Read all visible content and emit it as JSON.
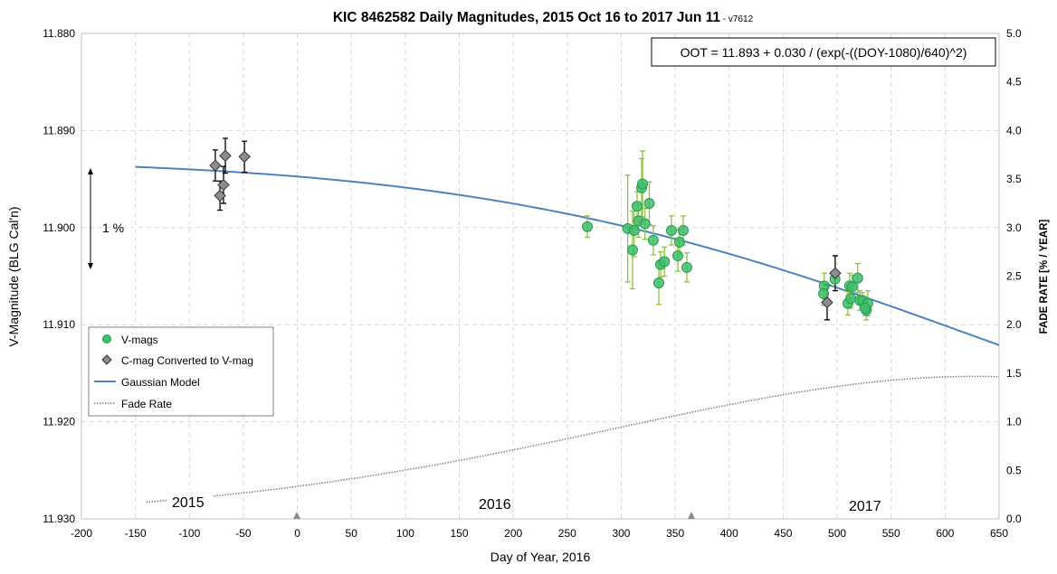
{
  "chart_data": {
    "type": "scatter",
    "title": "KIC 8462582 Daily Magnitudes, 2015 Oct 16 to 2017 Jun 11",
    "title_suffix": " - v7612",
    "xlabel": "Day of Year, 2016",
    "ylabel": "V-Magnitude (BLG Cal'n)",
    "y2label": "FADE RATE [% / YEAR]",
    "xlim": [
      -200,
      650
    ],
    "ylim": [
      11.88,
      11.93
    ],
    "y_inverted": true,
    "y2lim": [
      0,
      5.0
    ],
    "grid": true,
    "legend_position": "bottom-left",
    "x_ticks": [
      "-200",
      "-150",
      "-100",
      "-50",
      "0",
      "50",
      "100",
      "150",
      "200",
      "250",
      "300",
      "350",
      "400",
      "450",
      "500",
      "550",
      "600",
      "650"
    ],
    "y_ticks": [
      "11.880",
      "11.890",
      "11.900",
      "11.910",
      "11.920",
      "11.930"
    ],
    "y2_ticks": [
      "0.0",
      "0.5",
      "1.0",
      "1.5",
      "2.0",
      "2.5",
      "3.0",
      "3.5",
      "4.0",
      "4.5",
      "5.0"
    ],
    "equation": "OOT = 11.893 + 0.030 / (exp(-((DOY-1080)/640)^2)",
    "model": {
      "base": 11.893,
      "amplitude": 0.03,
      "center": 1080,
      "width": 640,
      "x_range": [
        -150,
        650
      ]
    },
    "fade_rate_range": [
      -140,
      650
    ],
    "annotations": {
      "scale": "1 %",
      "years": [
        "2015",
        "2016",
        "2017"
      ]
    },
    "series": [
      {
        "name": "V-mags",
        "marker": "circle",
        "color": "#3DBE6B",
        "errcolor": "#8CC43F",
        "points": [
          [
            268.6,
            11.8999,
            0.0011
          ],
          [
            306,
            11.9001,
            0.0055
          ],
          [
            310.5,
            11.9023,
            0.004
          ],
          [
            312,
            11.9003,
            0.0027
          ],
          [
            314.7,
            11.8978,
            0.0015
          ],
          [
            316,
            11.8993,
            0.0017
          ],
          [
            318.9,
            11.8959,
            0.003
          ],
          [
            319.7,
            11.8955,
            0.0034
          ],
          [
            322,
            11.8996,
            0.0016
          ],
          [
            326,
            11.8975,
            0.0022
          ],
          [
            329.7,
            11.9013,
            0.0015
          ],
          [
            334.8,
            11.9057,
            0.0022
          ],
          [
            336.5,
            11.9038,
            0.0013
          ],
          [
            340,
            11.9035,
            0.0015
          ],
          [
            346.5,
            11.9003,
            0.0015
          ],
          [
            352.4,
            11.9029,
            0.0016
          ],
          [
            354,
            11.9015,
            0.0013
          ],
          [
            357.4,
            11.9003,
            0.0015
          ],
          [
            360.8,
            11.9041,
            0.0015
          ],
          [
            488,
            11.906,
            0.0013
          ],
          [
            487.4,
            11.9068,
            0.0012
          ],
          [
            498,
            11.9053,
            0.0008
          ],
          [
            510,
            11.9078,
            0.0012
          ],
          [
            511.6,
            11.906,
            0.0013
          ],
          [
            514,
            11.9061,
            0.0012
          ],
          [
            512.5,
            11.9073,
            0.001
          ],
          [
            519,
            11.9052,
            0.0015
          ],
          [
            521,
            11.9075,
            0.001
          ],
          [
            523.5,
            11.9075,
            0.0008
          ],
          [
            527,
            11.9085,
            0.001
          ],
          [
            528.4,
            11.9078,
            0.0013
          ],
          [
            526,
            11.9083,
            0.0008
          ]
        ]
      },
      {
        "name": "C-mag Converted to V-mag",
        "marker": "diamond",
        "color": "#8C8C8C",
        "errcolor": "#000000",
        "points": [
          [
            -76,
            11.8936,
            0.0016
          ],
          [
            -66.7,
            11.8926,
            0.0018
          ],
          [
            -49,
            11.8927,
            0.0016
          ],
          [
            -68.4,
            11.8956,
            0.0019
          ],
          [
            -71.7,
            11.8967,
            0.0015
          ],
          [
            498.2,
            11.9047,
            0.0018
          ],
          [
            490.7,
            11.9077,
            0.0018
          ]
        ]
      },
      {
        "name": "Gaussian Model",
        "marker": "line",
        "color": "#4F81BD"
      },
      {
        "name": "Fade Rate",
        "marker": "dotted",
        "color": "#7F7F7F"
      }
    ]
  }
}
